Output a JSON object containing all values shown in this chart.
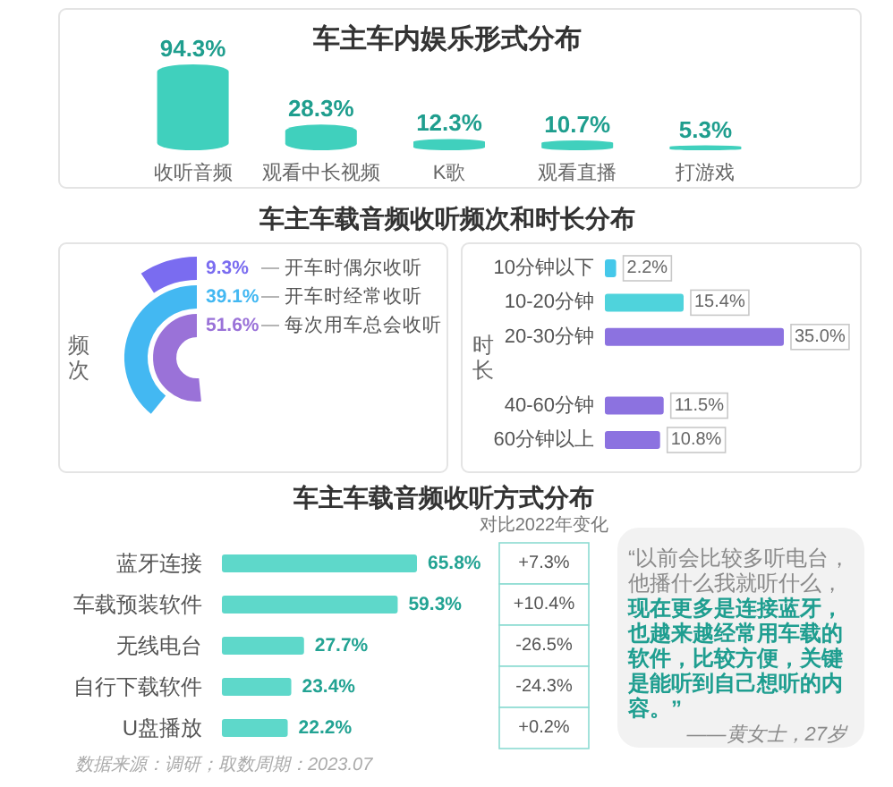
{
  "chart_data": [
    {
      "type": "bar",
      "title": "车主车内娱乐形式分布",
      "categories": [
        "收听音频",
        "观看中长视频",
        "K歌",
        "观看直播",
        "打游戏"
      ],
      "values": [
        94.3,
        28.3,
        12.3,
        10.7,
        5.3
      ],
      "value_labels": [
        "94.3%",
        "28.3%",
        "12.3%",
        "10.7%",
        "5.3%"
      ],
      "color": "#40d0bd"
    },
    {
      "type": "other",
      "title": "车主车载音频收听频次和时长分布",
      "ylabel": "频次",
      "categories": [
        "开车时偶尔收听",
        "开车时经常收听",
        "每次用车总会收听"
      ],
      "values": [
        9.3,
        39.1,
        51.6
      ],
      "value_labels": [
        "9.3%",
        "39.1%",
        "51.6%"
      ],
      "colors": [
        "#7a6cf0",
        "#43b8f2",
        "#9a72d8"
      ]
    },
    {
      "type": "bar",
      "orientation": "horizontal",
      "ylabel": "时长",
      "categories": [
        "10分钟以下",
        "10-20分钟",
        "20-30分钟",
        null,
        "40-60分钟",
        "60分钟以上"
      ],
      "values": [
        2.2,
        15.4,
        35.0,
        null,
        11.5,
        10.8
      ],
      "value_labels": [
        "2.2%",
        "15.4%",
        "35.0%",
        null,
        "11.5%",
        "10.8%"
      ],
      "colors": [
        "#45c8ea",
        "#4fd3dc",
        "#8c72e0",
        null,
        "#8c72e0",
        "#8c72e0"
      ]
    },
    {
      "type": "bar",
      "orientation": "horizontal",
      "title": "车主车载音频收听方式分布",
      "categories": [
        "蓝牙连接",
        "车载预装软件",
        "无线电台",
        "自行下载软件",
        "U盘播放"
      ],
      "values": [
        65.8,
        59.3,
        27.7,
        23.4,
        22.2
      ],
      "value_labels": [
        "65.8%",
        "59.3%",
        "27.7%",
        "23.4%",
        "22.2%"
      ],
      "color": "#5ed8ca",
      "annotations": [
        "数据来源：调研；取数周期：2023.07"
      ]
    },
    {
      "type": "other",
      "title": "对比2022年变化",
      "annotations": [
        "+7.3%",
        "+10.4%",
        "-26.5%",
        "-24.3%",
        "+0.2%"
      ]
    },
    {
      "type": "other",
      "annotations": [
        "“以前会比较多听电台，他播什么我就听什么，",
        "现在更多是连接蓝牙，也越来越经常用车载的软件，比较方便，关键是能听到自己想听的内容。”",
        "——黄女士，27岁"
      ],
      "colors": [
        "#8a8a8a",
        "#1f9e90",
        "#8a8a8a"
      ]
    }
  ]
}
